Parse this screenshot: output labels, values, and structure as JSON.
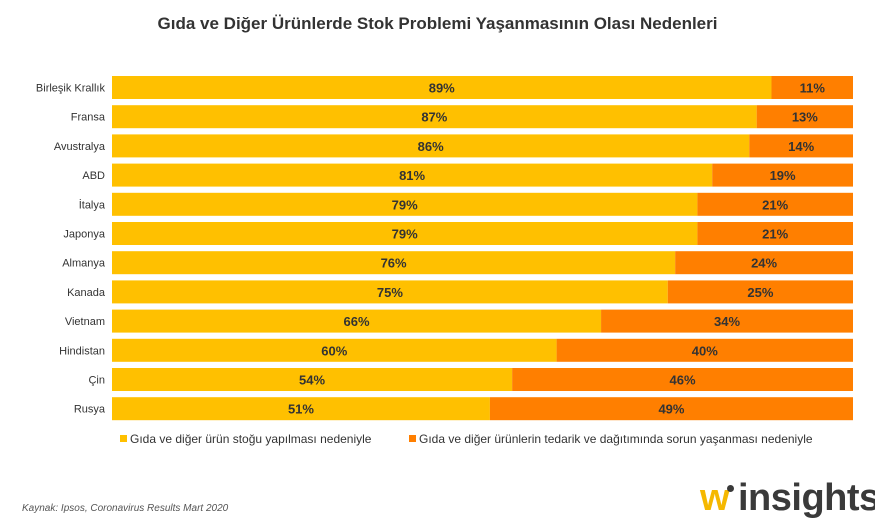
{
  "chart_data": {
    "type": "bar",
    "orientation": "horizontal",
    "stacked": true,
    "normalized": true,
    "title": "Gıda ve Diğer Ürünlerde Stok Problemi Yaşanmasının Olası Nedenleri",
    "categories": [
      "Birleşik Krallık",
      "Fransa",
      "Avustralya",
      "ABD",
      "İtalya",
      "Japonya",
      "Almanya",
      "Kanada",
      "Vietnam",
      "Hindistan",
      "Çin",
      "Rusya"
    ],
    "series": [
      {
        "name": "Gıda ve diğer ürün stoğu yapılması nedeniyle",
        "color": "#FFC000",
        "values": [
          89,
          87,
          86,
          81,
          79,
          79,
          76,
          75,
          66,
          60,
          54,
          51
        ],
        "labels": [
          "89%",
          "87%",
          "86%",
          "81%",
          "79%",
          "79%",
          "76%",
          "75%",
          "66%",
          "60%",
          "54%",
          "51%"
        ]
      },
      {
        "name": "Gıda ve diğer ürünlerin tedarik ve dağıtımında sorun yaşanması nedeniyle",
        "color": "#FF7F00",
        "values": [
          11,
          13,
          14,
          19,
          21,
          21,
          24,
          25,
          34,
          40,
          46,
          49
        ],
        "labels": [
          "11%",
          "13%",
          "14%",
          "19%",
          "21%",
          "21%",
          "24%",
          "25%",
          "34%",
          "40%",
          "46%",
          "49%"
        ]
      }
    ],
    "xlim": [
      0,
      100
    ],
    "grid": false,
    "legend_position": "bottom"
  },
  "source": "Kaynak: Ipsos, Coronavirus Results Mart 2020",
  "logo": {
    "mark": "w",
    "text": "insights"
  }
}
